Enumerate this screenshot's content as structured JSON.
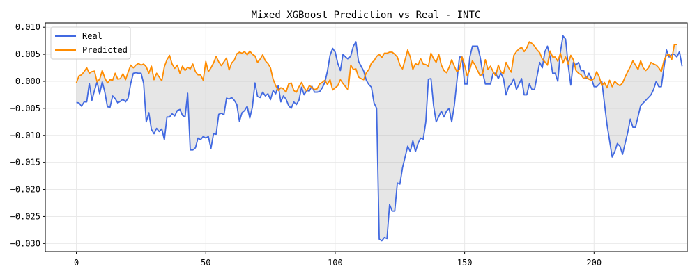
{
  "chart_data": {
    "type": "line",
    "title": "Mixed XGBoost Prediction vs Real - INTC",
    "xlabel": "",
    "ylabel": "",
    "xlim": [
      -12,
      236
    ],
    "ylim": [
      -0.0315,
      0.0108
    ],
    "x_ticks": [
      0,
      50,
      100,
      150,
      200
    ],
    "x_tick_labels": [
      "0",
      "50",
      "100",
      "150",
      "200"
    ],
    "y_ticks": [
      0.01,
      0.005,
      0.0,
      -0.005,
      -0.01,
      -0.015,
      -0.02,
      -0.025,
      -0.03
    ],
    "y_tick_labels": [
      "0.010",
      "0.005",
      "0.000",
      "−0.005",
      "−0.010",
      "−0.015",
      "−0.020",
      "−0.025",
      "−0.030"
    ],
    "grid": true,
    "legend_position": "top-left",
    "fill_between": {
      "color": "#808080",
      "opacity": 0.2
    },
    "series": [
      {
        "name": "Real",
        "color": "#4169e1",
        "values": [
          -0.0039,
          -0.004,
          -0.0046,
          -0.0038,
          -0.0038,
          -0.0004,
          -0.0035,
          -0.0017,
          -0.0001,
          -0.0023,
          -0.0001,
          -0.002,
          -0.0047,
          -0.0048,
          -0.0027,
          -0.0032,
          -0.004,
          -0.0037,
          -0.0033,
          -0.0038,
          -0.0031,
          -0.0004,
          0.0015,
          0.0016,
          0.0015,
          0.0015,
          -0.0004,
          -0.0075,
          -0.0058,
          -0.0089,
          -0.0097,
          -0.0087,
          -0.0093,
          -0.0088,
          -0.0108,
          -0.0066,
          -0.0066,
          -0.006,
          -0.0064,
          -0.0054,
          -0.0052,
          -0.0063,
          -0.0066,
          -0.0022,
          -0.0127,
          -0.0127,
          -0.0123,
          -0.0105,
          -0.0108,
          -0.0102,
          -0.0105,
          -0.0102,
          -0.0124,
          -0.0097,
          -0.0098,
          -0.0061,
          -0.0059,
          -0.0062,
          -0.0031,
          -0.0033,
          -0.003,
          -0.0035,
          -0.0043,
          -0.0074,
          -0.0058,
          -0.0054,
          -0.0046,
          -0.0068,
          -0.0048,
          -0.0003,
          -0.0028,
          -0.003,
          -0.002,
          -0.0027,
          -0.0023,
          -0.0034,
          -0.0017,
          -0.0023,
          -0.0008,
          -0.0038,
          -0.0027,
          -0.0033,
          -0.0045,
          -0.005,
          -0.0038,
          -0.0043,
          -0.0035,
          -0.0011,
          -0.0025,
          -0.0017,
          -0.0018,
          -0.0009,
          -0.002,
          -0.002,
          -0.0019,
          -0.0012,
          -0.0002,
          0.0019,
          0.0048,
          0.0061,
          0.0054,
          0.0033,
          0.002,
          0.005,
          0.0045,
          0.0041,
          0.0047,
          0.0065,
          0.0073,
          0.0037,
          0.0028,
          0.0019,
          0.0002,
          -0.0006,
          -0.0011,
          -0.004,
          -0.005,
          -0.0292,
          -0.0295,
          -0.0289,
          -0.0291,
          -0.0228,
          -0.024,
          -0.024,
          -0.0188,
          -0.019,
          -0.016,
          -0.014,
          -0.012,
          -0.013,
          -0.011,
          -0.013,
          -0.0115,
          -0.0105,
          -0.0107,
          -0.0075,
          0.0004,
          0.0005,
          -0.0045,
          -0.0075,
          -0.0065,
          -0.0055,
          -0.0066,
          -0.0055,
          -0.005,
          -0.0075,
          -0.0045,
          0.0,
          0.0045,
          0.0045,
          -0.0005,
          -0.0005,
          0.0045,
          0.0065,
          0.0065,
          0.0065,
          0.0045,
          0.0015,
          -0.0005,
          -0.0005,
          -0.0005,
          0.0015,
          0.0015,
          0.0005,
          0.0015,
          0.0005,
          -0.0025,
          -0.001,
          -0.0005,
          0.0005,
          -0.0015,
          -0.0005,
          0.0005,
          -0.0025,
          -0.0025,
          -0.0005,
          -0.0015,
          -0.0015,
          0.001,
          0.0035,
          0.0025,
          0.0055,
          0.0065,
          0.0045,
          0.0015,
          0.0015,
          0.0,
          0.0055,
          0.0084,
          0.0078,
          0.003,
          -0.0007,
          0.0035,
          0.003,
          0.0035,
          0.002,
          0.002,
          0.0005,
          0.0015,
          0.0005,
          -0.001,
          -0.001,
          -0.0005,
          0.0,
          -0.004,
          -0.008,
          -0.011,
          -0.014,
          -0.013,
          -0.0115,
          -0.012,
          -0.0135,
          -0.0115,
          -0.0095,
          -0.007,
          -0.0085,
          -0.0085,
          -0.0065,
          -0.0045,
          -0.004,
          -0.0035,
          -0.003,
          -0.0025,
          -0.0015,
          0.0,
          -0.001,
          -0.001,
          0.0025,
          0.0058,
          0.0045,
          0.005,
          0.005,
          0.0045,
          0.0055,
          0.0028
        ]
      },
      {
        "name": "Predicted",
        "color": "#ff8c00",
        "values": [
          -0.0003,
          0.001,
          0.0012,
          0.0018,
          0.0025,
          0.0015,
          0.0018,
          0.0019,
          -0.0001,
          0.0004,
          0.002,
          0.0006,
          -0.0003,
          0.0003,
          0.0002,
          0.0015,
          0.0004,
          0.0005,
          0.0014,
          0.0003,
          0.0017,
          0.003,
          0.0025,
          0.003,
          0.0033,
          0.003,
          0.0032,
          0.0027,
          0.0015,
          0.0028,
          0.0003,
          0.0015,
          0.0008,
          0.0001,
          0.0027,
          0.004,
          0.0048,
          0.0032,
          0.0024,
          0.003,
          0.0015,
          0.0028,
          0.002,
          0.0026,
          0.0023,
          0.0032,
          0.0018,
          0.0012,
          0.0012,
          0.0002,
          0.0037,
          0.0018,
          0.0025,
          0.0034,
          0.0046,
          0.0036,
          0.0029,
          0.0036,
          0.0043,
          0.0021,
          0.0034,
          0.0039,
          0.0051,
          0.0054,
          0.0052,
          0.0055,
          0.0049,
          0.0056,
          0.005,
          0.0047,
          0.0035,
          0.0041,
          0.0049,
          0.0038,
          0.0033,
          0.0025,
          0.0004,
          -0.0008,
          -0.0017,
          -0.0012,
          -0.0014,
          -0.002,
          -0.0005,
          -0.0003,
          -0.0017,
          -0.002,
          -0.001,
          -0.0002,
          -0.0012,
          -0.0018,
          -0.0008,
          -0.0011,
          -0.0015,
          -0.0014,
          -0.0005,
          -0.0002,
          0.0002,
          -0.0006,
          0.0003,
          -0.0016,
          -0.0012,
          -0.0008,
          0.0003,
          -0.0004,
          -0.001,
          -0.0016,
          0.003,
          0.0022,
          0.0023,
          0.0008,
          0.0005,
          0.0003,
          0.0016,
          0.0022,
          0.0034,
          0.0038,
          0.0046,
          0.005,
          0.0044,
          0.0052,
          0.0052,
          0.0054,
          0.0054,
          0.005,
          0.0045,
          0.003,
          0.0023,
          0.004,
          0.0058,
          0.0045,
          0.0022,
          0.0033,
          0.003,
          0.0042,
          0.0032,
          0.0031,
          0.0028,
          0.0052,
          0.0042,
          0.0035,
          0.005,
          0.003,
          0.002,
          0.0016,
          0.0026,
          0.004,
          0.0028,
          0.0018,
          0.0022,
          0.0045,
          0.003,
          0.001,
          0.0022,
          0.0038,
          0.003,
          0.002,
          0.001,
          0.0015,
          0.004,
          0.0022,
          0.0028,
          0.0018,
          0.001,
          0.003,
          0.0018,
          0.0014,
          0.0035,
          0.0025,
          0.0017,
          0.0048,
          0.0055,
          0.006,
          0.0063,
          0.0055,
          0.0062,
          0.0073,
          0.007,
          0.0065,
          0.0058,
          0.0053,
          0.0041,
          0.0036,
          0.003,
          0.0056,
          0.0045,
          0.0045,
          0.0037,
          0.0052,
          0.0034,
          0.0045,
          0.0032,
          0.0048,
          0.004,
          0.002,
          0.0015,
          0.0012,
          0.0005,
          0.0008,
          0.0004,
          0.0002,
          0.0005,
          0.0018,
          0.0008,
          -0.0008,
          -0.0002,
          -0.0012,
          0.0002,
          -0.001,
          0.0,
          -0.0005,
          -0.0008,
          -0.0003,
          0.0008,
          0.0018,
          0.0027,
          0.0038,
          0.003,
          0.0022,
          0.0038,
          0.0025,
          0.002,
          0.0025,
          0.0035,
          0.0032,
          0.003,
          0.0025,
          0.0018,
          0.0038,
          0.0048,
          0.005,
          0.004,
          0.0068,
          0.0068
        ]
      }
    ]
  }
}
